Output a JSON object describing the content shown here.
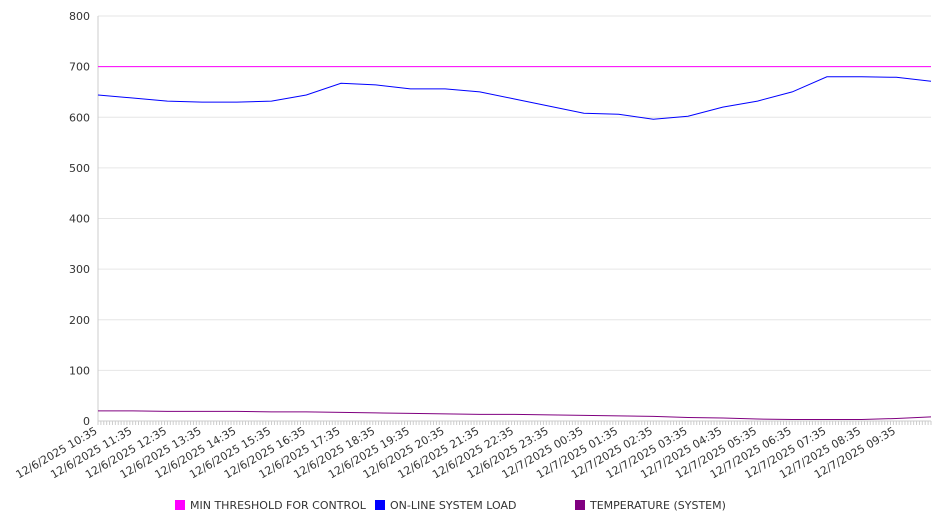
{
  "chart_data": {
    "type": "line",
    "title": "",
    "xlabel": "",
    "ylabel": "",
    "ylim": [
      0,
      800
    ],
    "yticks": [
      0,
      100,
      200,
      300,
      400,
      500,
      600,
      700,
      800
    ],
    "grid": true,
    "legend_position": "bottom",
    "x_tick_labels": [
      "12/6/2025 10:35",
      "12/6/2025 11:35",
      "12/6/2025 12:35",
      "12/6/2025 13:35",
      "12/6/2025 14:35",
      "12/6/2025 15:35",
      "12/6/2025 16:35",
      "12/6/2025 17:35",
      "12/6/2025 18:35",
      "12/6/2025 19:35",
      "12/6/2025 20:35",
      "12/6/2025 21:35",
      "12/6/2025 22:35",
      "12/6/2025 23:35",
      "12/7/2025 00:35",
      "12/7/2025 01:35",
      "12/7/2025 02:35",
      "12/7/2025 03:35",
      "12/7/2025 04:35",
      "12/7/2025 05:35",
      "12/7/2025 06:35",
      "12/7/2025 07:35",
      "12/7/2025 08:35",
      "12/7/2025 09:35"
    ],
    "x_hours": [
      0,
      1,
      2,
      3,
      4,
      5,
      6,
      7,
      8,
      9,
      10,
      11,
      12,
      13,
      14,
      15,
      16,
      17,
      18,
      19,
      20,
      21,
      22,
      23,
      24
    ],
    "series": [
      {
        "name": "MIN THRESHOLD FOR CONTROL",
        "color": "#ff00ff",
        "values": [
          700,
          700,
          700,
          700,
          700,
          700,
          700,
          700,
          700,
          700,
          700,
          700,
          700,
          700,
          700,
          700,
          700,
          700,
          700,
          700,
          700,
          700,
          700,
          700,
          700
        ]
      },
      {
        "name": "ON-LINE SYSTEM LOAD",
        "color": "#0000ff",
        "values": [
          644,
          638,
          632,
          630,
          630,
          632,
          644,
          667,
          664,
          656,
          656,
          650,
          636,
          622,
          608,
          606,
          596,
          602,
          620,
          632,
          650,
          680,
          680,
          679,
          671
        ]
      },
      {
        "name": "TEMPERATURE (SYSTEM)",
        "color": "#800080",
        "values": [
          20,
          20,
          19,
          19,
          19,
          18,
          18,
          17,
          16,
          15,
          14,
          13,
          13,
          12,
          11,
          10,
          9,
          7,
          6,
          4,
          3,
          3,
          3,
          5,
          8
        ]
      }
    ]
  }
}
